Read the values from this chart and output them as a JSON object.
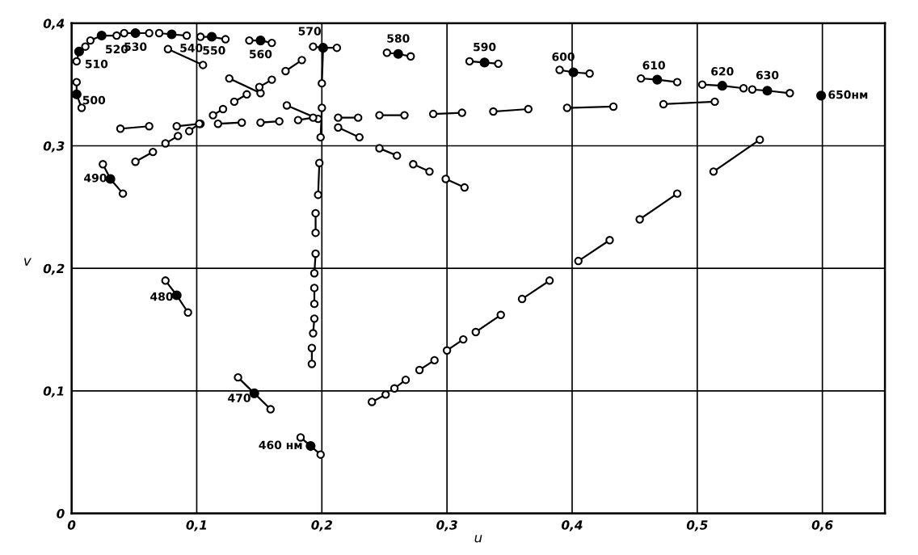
{
  "chart_data": {
    "type": "scatter",
    "xlabel": "u",
    "ylabel": "v",
    "xlim": [
      0,
      0.65
    ],
    "ylim": [
      0,
      0.4
    ],
    "xticks": [
      {
        "value": 0,
        "label": "0"
      },
      {
        "value": 0.1,
        "label": "0,1"
      },
      {
        "value": 0.2,
        "label": "0,2"
      },
      {
        "value": 0.3,
        "label": "0,3"
      },
      {
        "value": 0.4,
        "label": "0,4"
      },
      {
        "value": 0.5,
        "label": "0,5"
      },
      {
        "value": 0.6,
        "label": "0,6"
      }
    ],
    "yticks": [
      {
        "value": 0,
        "label": "0"
      },
      {
        "value": 0.1,
        "label": "0,1"
      },
      {
        "value": 0.2,
        "label": "0,2"
      },
      {
        "value": 0.3,
        "label": "0,3"
      },
      {
        "value": 0.4,
        "label": "0,4"
      }
    ],
    "grid": true,
    "marker": "circle",
    "series": [
      {
        "type": "line",
        "color": "#000000",
        "x": [
          0.004,
          0.006,
          0.011,
          null,
          0.015,
          0.024,
          0.036,
          null,
          0.042,
          0.051,
          0.062,
          null,
          0.07,
          0.08,
          0.092,
          null,
          0.103,
          0.112,
          0.123,
          null,
          0.142,
          0.151,
          0.16,
          null,
          0.193,
          0.201,
          0.212,
          null,
          0.252,
          0.261,
          0.271,
          null,
          0.318,
          0.33,
          0.341,
          null,
          0.39,
          0.401,
          0.414,
          null,
          0.455,
          0.468,
          0.484,
          null,
          0.504,
          0.52,
          0.537,
          null,
          0.544,
          0.556,
          0.574,
          null,
          0.004,
          0.004,
          0.008,
          null,
          0.025,
          0.031,
          0.041,
          null,
          0.075,
          0.084,
          0.093,
          null,
          0.133,
          0.146,
          0.159,
          null,
          0.183,
          0.191,
          0.199,
          null,
          0.201,
          0.2,
          null,
          0.077,
          0.105,
          null,
          0.126,
          0.151,
          null,
          0.15,
          0.16,
          null,
          0.13,
          0.14,
          null,
          0.171,
          0.184,
          null,
          0.113,
          0.121,
          null,
          0.172,
          0.197,
          null,
          0.181,
          0.193,
          null,
          0.039,
          0.062,
          null,
          0.084,
          0.103,
          null,
          0.094,
          0.102,
          null,
          0.075,
          0.085,
          null,
          0.051,
          0.065,
          null,
          0.117,
          0.136,
          null,
          0.151,
          0.166,
          null,
          0.2,
          0.199,
          null,
          0.198,
          0.197,
          null,
          0.195,
          0.195,
          null,
          0.195,
          0.194,
          null,
          0.194,
          0.194,
          null,
          0.194,
          0.193,
          null,
          0.192,
          0.192,
          null,
          0.213,
          0.229,
          null,
          0.213,
          0.23,
          null,
          0.246,
          0.266,
          null,
          0.289,
          0.312,
          null,
          0.337,
          0.365,
          null,
          0.396,
          0.433,
          null,
          0.473,
          0.514,
          null,
          0.246,
          0.26,
          null,
          0.273,
          0.286,
          null,
          0.299,
          0.314,
          null,
          0.454,
          0.484,
          null,
          0.405,
          0.43,
          null,
          0.513,
          0.55,
          null,
          0.24,
          0.251,
          null,
          0.258,
          0.267,
          null,
          0.278,
          0.29,
          null,
          0.3,
          0.313,
          null,
          0.323,
          0.343,
          null,
          0.36,
          0.382
        ],
        "values": [
          0.369,
          0.377,
          0.381,
          null,
          0.386,
          0.39,
          0.39,
          null,
          0.392,
          0.392,
          0.392,
          null,
          0.392,
          0.391,
          0.39,
          null,
          0.389,
          0.389,
          0.387,
          null,
          0.386,
          0.386,
          0.384,
          null,
          0.381,
          0.38,
          0.38,
          null,
          0.376,
          0.375,
          0.373,
          null,
          0.369,
          0.368,
          0.367,
          null,
          0.362,
          0.36,
          0.359,
          null,
          0.355,
          0.354,
          0.352,
          null,
          0.35,
          0.349,
          0.347,
          null,
          0.346,
          0.345,
          0.343,
          null,
          0.352,
          0.342,
          0.331,
          null,
          0.285,
          0.273,
          0.261,
          null,
          0.19,
          0.178,
          0.164,
          null,
          0.111,
          0.098,
          0.085,
          null,
          0.062,
          0.055,
          0.048,
          null,
          0.38,
          0.351,
          null,
          0.379,
          0.366,
          null,
          0.355,
          0.343,
          null,
          0.348,
          0.354,
          null,
          0.336,
          0.342,
          null,
          0.361,
          0.37,
          null,
          0.325,
          0.33,
          null,
          0.333,
          0.322,
          null,
          0.321,
          0.323,
          null,
          0.314,
          0.316,
          null,
          0.316,
          0.318,
          null,
          0.312,
          0.318,
          null,
          0.302,
          0.308,
          null,
          0.287,
          0.295,
          null,
          0.318,
          0.319,
          null,
          0.319,
          0.32,
          null,
          0.331,
          0.307,
          null,
          0.286,
          0.26,
          null,
          0.245,
          0.229,
          null,
          0.212,
          0.196,
          null,
          0.184,
          0.171,
          null,
          0.159,
          0.147,
          null,
          0.135,
          0.122,
          null,
          0.323,
          0.323,
          null,
          0.315,
          0.307,
          null,
          0.325,
          0.325,
          null,
          0.326,
          0.327,
          null,
          0.328,
          0.33,
          null,
          0.331,
          0.332,
          null,
          0.334,
          0.336,
          null,
          0.298,
          0.292,
          null,
          0.285,
          0.279,
          null,
          0.273,
          0.266,
          null,
          0.24,
          0.261,
          null,
          0.206,
          0.223,
          null,
          0.279,
          0.305,
          null,
          0.091,
          0.097,
          null,
          0.102,
          0.109,
          null,
          0.117,
          0.125,
          null,
          0.133,
          0.142,
          null,
          0.148,
          0.162,
          null,
          0.175,
          0.19
        ]
      },
      {
        "type": "scatter",
        "color": "#000000",
        "x": [
          0.004,
          0.006,
          0.024,
          0.051,
          0.08,
          0.112,
          0.151,
          0.201,
          0.261,
          0.33,
          0.401,
          0.468,
          0.52,
          0.556,
          0.599,
          0.031,
          0.084,
          0.146,
          0.191
        ],
        "values": [
          0.342,
          0.377,
          0.39,
          0.392,
          0.391,
          0.389,
          0.386,
          0.38,
          0.375,
          0.368,
          0.36,
          0.354,
          0.349,
          0.345,
          0.341,
          0.273,
          0.178,
          0.098,
          0.055
        ]
      }
    ],
    "annotations": [
      {
        "text": "500",
        "x": 0.004,
        "y": 0.342
      },
      {
        "text": "510",
        "x": 0.006,
        "y": 0.377
      },
      {
        "text": "520",
        "x": 0.024,
        "y": 0.39
      },
      {
        "text": "530",
        "x": 0.051,
        "y": 0.392
      },
      {
        "text": "540",
        "x": 0.08,
        "y": 0.391
      },
      {
        "text": "550",
        "x": 0.112,
        "y": 0.389
      },
      {
        "text": "560",
        "x": 0.151,
        "y": 0.386
      },
      {
        "text": "570",
        "x": 0.201,
        "y": 0.38
      },
      {
        "text": "580",
        "x": 0.261,
        "y": 0.375
      },
      {
        "text": "590",
        "x": 0.33,
        "y": 0.368
      },
      {
        "text": "600",
        "x": 0.401,
        "y": 0.36
      },
      {
        "text": "610",
        "x": 0.468,
        "y": 0.354
      },
      {
        "text": "620",
        "x": 0.52,
        "y": 0.349
      },
      {
        "text": "630",
        "x": 0.556,
        "y": 0.345
      },
      {
        "text": "650нм",
        "x": 0.599,
        "y": 0.341
      },
      {
        "text": "490",
        "x": 0.031,
        "y": 0.273
      },
      {
        "text": "480",
        "x": 0.084,
        "y": 0.178
      },
      {
        "text": "470",
        "x": 0.146,
        "y": 0.098
      },
      {
        "text": "460 нм",
        "x": 0.191,
        "y": 0.055
      }
    ]
  }
}
